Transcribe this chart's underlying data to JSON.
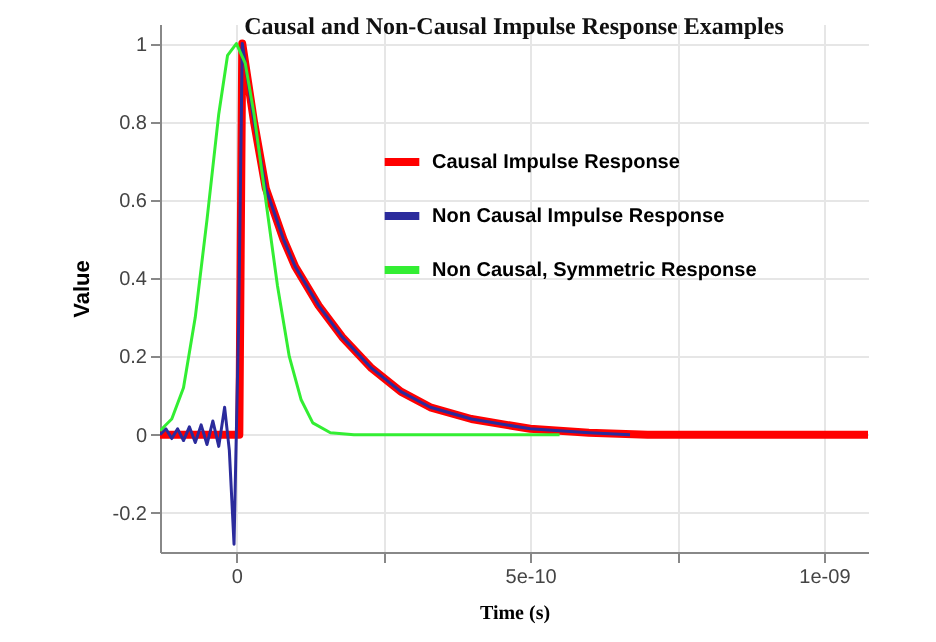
{
  "chart_data": {
    "type": "line",
    "title": "Causal and Non-Causal Impulse Response Examples",
    "xlabel": "Time (s)",
    "ylabel": "Value",
    "xlim": [
      -1.3e-10,
      1.075e-09
    ],
    "ylim": [
      -0.3,
      1.05
    ],
    "xticks": [
      0,
      {
        "value": 2.5e-10,
        "label": null
      },
      {
        "value": 5e-10,
        "label": "5e-10"
      },
      {
        "value": 7.5e-10,
        "label": null
      },
      {
        "value": 1e-09,
        "label": "1e-09"
      }
    ],
    "yticks": [
      -0.2,
      0,
      0.2,
      0.4,
      0.6,
      0.8,
      1
    ],
    "grid": true,
    "legend": "top right",
    "series": [
      {
        "name": "Causal Impulse Response",
        "color": "#ff0000",
        "x": [
          -1.3e-10,
          5e-12,
          1e-11,
          3e-11,
          5e-11,
          8e-11,
          1e-10,
          1.4e-10,
          1.8e-10,
          2.3e-10,
          2.8e-10,
          3.3e-10,
          4e-10,
          5e-10,
          6e-10,
          7e-10,
          1.075e-09
        ],
        "values": [
          0,
          0,
          1,
          0.8,
          0.63,
          0.5,
          0.43,
          0.33,
          0.25,
          0.17,
          0.11,
          0.07,
          0.04,
          0.015,
          0.005,
          0,
          0
        ]
      },
      {
        "name": "Non Causal Impulse Response",
        "color": "#2b2b9c",
        "x": [
          -1.3e-10,
          -1.2e-10,
          -1.1e-10,
          -1e-10,
          -9e-11,
          -8e-11,
          -7e-11,
          -6e-11,
          -5e-11,
          -4e-11,
          -3e-11,
          -2e-11,
          -1.2e-11,
          -4e-12,
          4e-12,
          1e-11,
          3e-11,
          5e-11,
          8e-11,
          1e-10,
          1.4e-10,
          1.8e-10,
          2.3e-10,
          2.8e-10,
          3.3e-10,
          4e-10,
          5e-10,
          6e-10,
          6.7e-10
        ],
        "values": [
          0,
          0.015,
          -0.01,
          0.015,
          -0.015,
          0.02,
          -0.02,
          0.025,
          -0.025,
          0.035,
          -0.03,
          0.07,
          -0.04,
          -0.28,
          0.3,
          1,
          0.8,
          0.63,
          0.5,
          0.43,
          0.33,
          0.25,
          0.17,
          0.11,
          0.07,
          0.04,
          0.015,
          0.005,
          0
        ]
      },
      {
        "name": "Non Causal, Symmetric Response",
        "color": "#33ee33",
        "x": [
          -1.3e-10,
          -1.1e-10,
          -9e-11,
          -7e-11,
          -5e-11,
          -3e-11,
          -1.5e-11,
          0,
          1.5e-11,
          3e-11,
          5e-11,
          7e-11,
          9e-11,
          1.1e-10,
          1.3e-10,
          1.6e-10,
          2e-10,
          5.5e-10
        ],
        "values": [
          0.01,
          0.04,
          0.12,
          0.3,
          0.55,
          0.82,
          0.97,
          1,
          0.95,
          0.82,
          0.6,
          0.38,
          0.2,
          0.09,
          0.03,
          0.005,
          0,
          0
        ]
      }
    ]
  }
}
